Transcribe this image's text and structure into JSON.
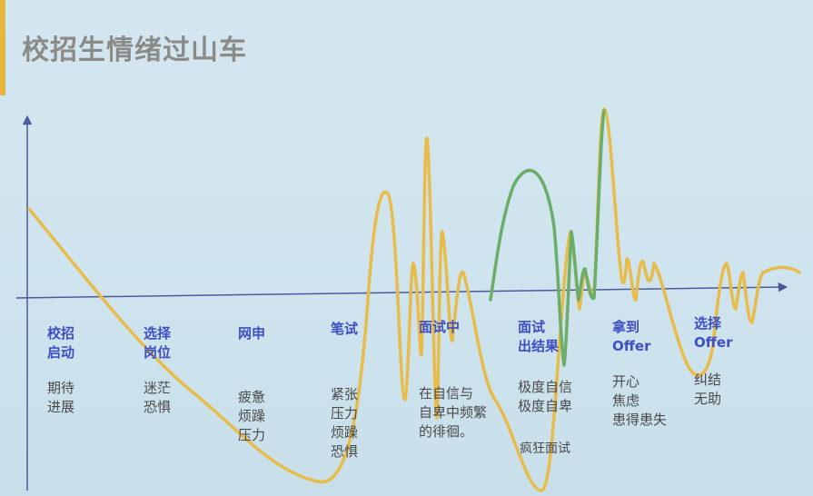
{
  "title": "校招生情绪过山车",
  "colors": {
    "yellow": "#e8bc4a",
    "green": "#6aae6a",
    "axis": "#4a5a9c",
    "stage_title": "#3f4fc4"
  },
  "stages": [
    {
      "title": [
        "校招",
        "启动"
      ],
      "emotions": [
        "期待",
        "进展"
      ]
    },
    {
      "title": [
        "选择",
        "岗位"
      ],
      "emotions": [
        "迷茫",
        "恐惧"
      ]
    },
    {
      "title": [
        "网申"
      ],
      "emotions": [
        "疲惫",
        "烦躁",
        "压力"
      ]
    },
    {
      "title": [
        "笔试"
      ],
      "emotions": [
        "紧张",
        "压力",
        "烦躁",
        "恐惧"
      ]
    },
    {
      "title": [
        "面试中"
      ],
      "emotions": [
        "在自信与",
        "自卑中频繁",
        "的徘徊。"
      ]
    },
    {
      "title": [
        "面试",
        "出结果"
      ],
      "emotions": [
        "极度自信",
        "极度自卑"
      ],
      "extra": "疯狂面试"
    },
    {
      "title": [
        "拿到",
        "Offer"
      ],
      "emotions": [
        "开心",
        "焦虑",
        "患得患失"
      ]
    },
    {
      "title": [
        "选择",
        "Offer"
      ],
      "emotions": [
        "纠结",
        "无助"
      ]
    }
  ]
}
